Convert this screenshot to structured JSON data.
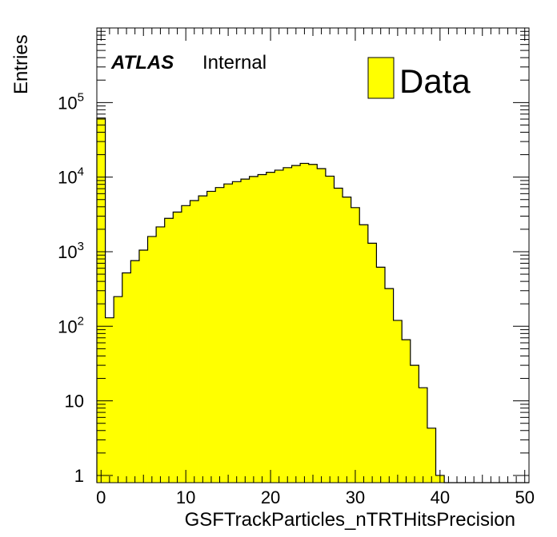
{
  "chart_data": {
    "type": "bar",
    "title": "",
    "xlabel": "GSFTrackParticles_nTRTHitsPrecision",
    "ylabel": "Entries",
    "yscale": "log",
    "xlim": [
      -0.5,
      50.5
    ],
    "ylim": [
      0.8,
      1000000
    ],
    "grid": false,
    "legend_position": "top-right",
    "series": [
      {
        "name": "Data",
        "color": "#ffff00",
        "bin_edges_start": -0.5,
        "bin_width": 1,
        "values": [
          62000,
          130,
          250,
          520,
          760,
          1050,
          1600,
          2150,
          2800,
          3400,
          4150,
          4850,
          5600,
          6450,
          7250,
          8100,
          8700,
          9400,
          10200,
          10800,
          11600,
          12400,
          13400,
          14300,
          15300,
          14800,
          13000,
          10300,
          7100,
          5400,
          3900,
          2300,
          1300,
          620,
          320,
          120,
          66,
          30,
          15,
          4.3,
          1,
          0,
          0,
          0,
          0,
          0,
          0,
          0,
          0,
          0,
          0
        ]
      }
    ],
    "x_ticks": [
      {
        "value": 0,
        "label": "0"
      },
      {
        "value": 10,
        "label": "10"
      },
      {
        "value": 20,
        "label": "20"
      },
      {
        "value": 30,
        "label": "30"
      },
      {
        "value": 40,
        "label": "40"
      },
      {
        "value": 50,
        "label": "50"
      }
    ],
    "y_ticks": [
      {
        "value": 1,
        "base": "1",
        "exp": ""
      },
      {
        "value": 10,
        "base": "10",
        "exp": ""
      },
      {
        "value": 100,
        "base": "10",
        "exp": "2"
      },
      {
        "value": 1000,
        "base": "10",
        "exp": "3"
      },
      {
        "value": 10000,
        "base": "10",
        "exp": "4"
      },
      {
        "value": 100000,
        "base": "10",
        "exp": "5"
      }
    ],
    "annotation": {
      "experiment": "ATLAS",
      "status": "Internal"
    },
    "legend": {
      "label": "Data",
      "fill": "#ffff00"
    }
  }
}
